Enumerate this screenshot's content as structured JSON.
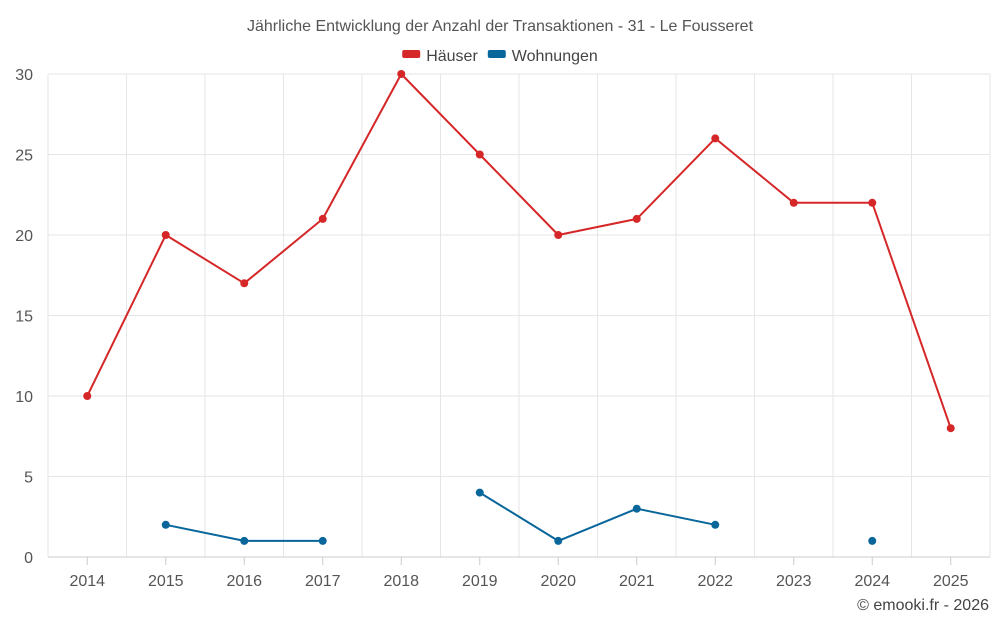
{
  "chart_data": {
    "type": "line",
    "title": "Jährliche Entwicklung der Anzahl der Transaktionen - 31 - Le Fousseret",
    "categories": [
      "2014",
      "2015",
      "2016",
      "2017",
      "2018",
      "2019",
      "2020",
      "2021",
      "2022",
      "2023",
      "2024",
      "2025"
    ],
    "ylim": [
      0,
      30
    ],
    "yticks": [
      "0",
      "5",
      "10",
      "15",
      "20",
      "25",
      "30"
    ],
    "grid": true,
    "legend_position": "top-center",
    "series": [
      {
        "name": "Häuser",
        "color": "#d62728",
        "values": [
          10,
          20,
          17,
          21,
          30,
          25,
          20,
          21,
          26,
          22,
          22,
          8
        ]
      },
      {
        "name": "Wohnungen",
        "color": "#08669b",
        "values": [
          null,
          2,
          1,
          1,
          null,
          4,
          1,
          3,
          2,
          null,
          1,
          null
        ]
      }
    ],
    "credit": "© emooki.fr - 2026"
  }
}
